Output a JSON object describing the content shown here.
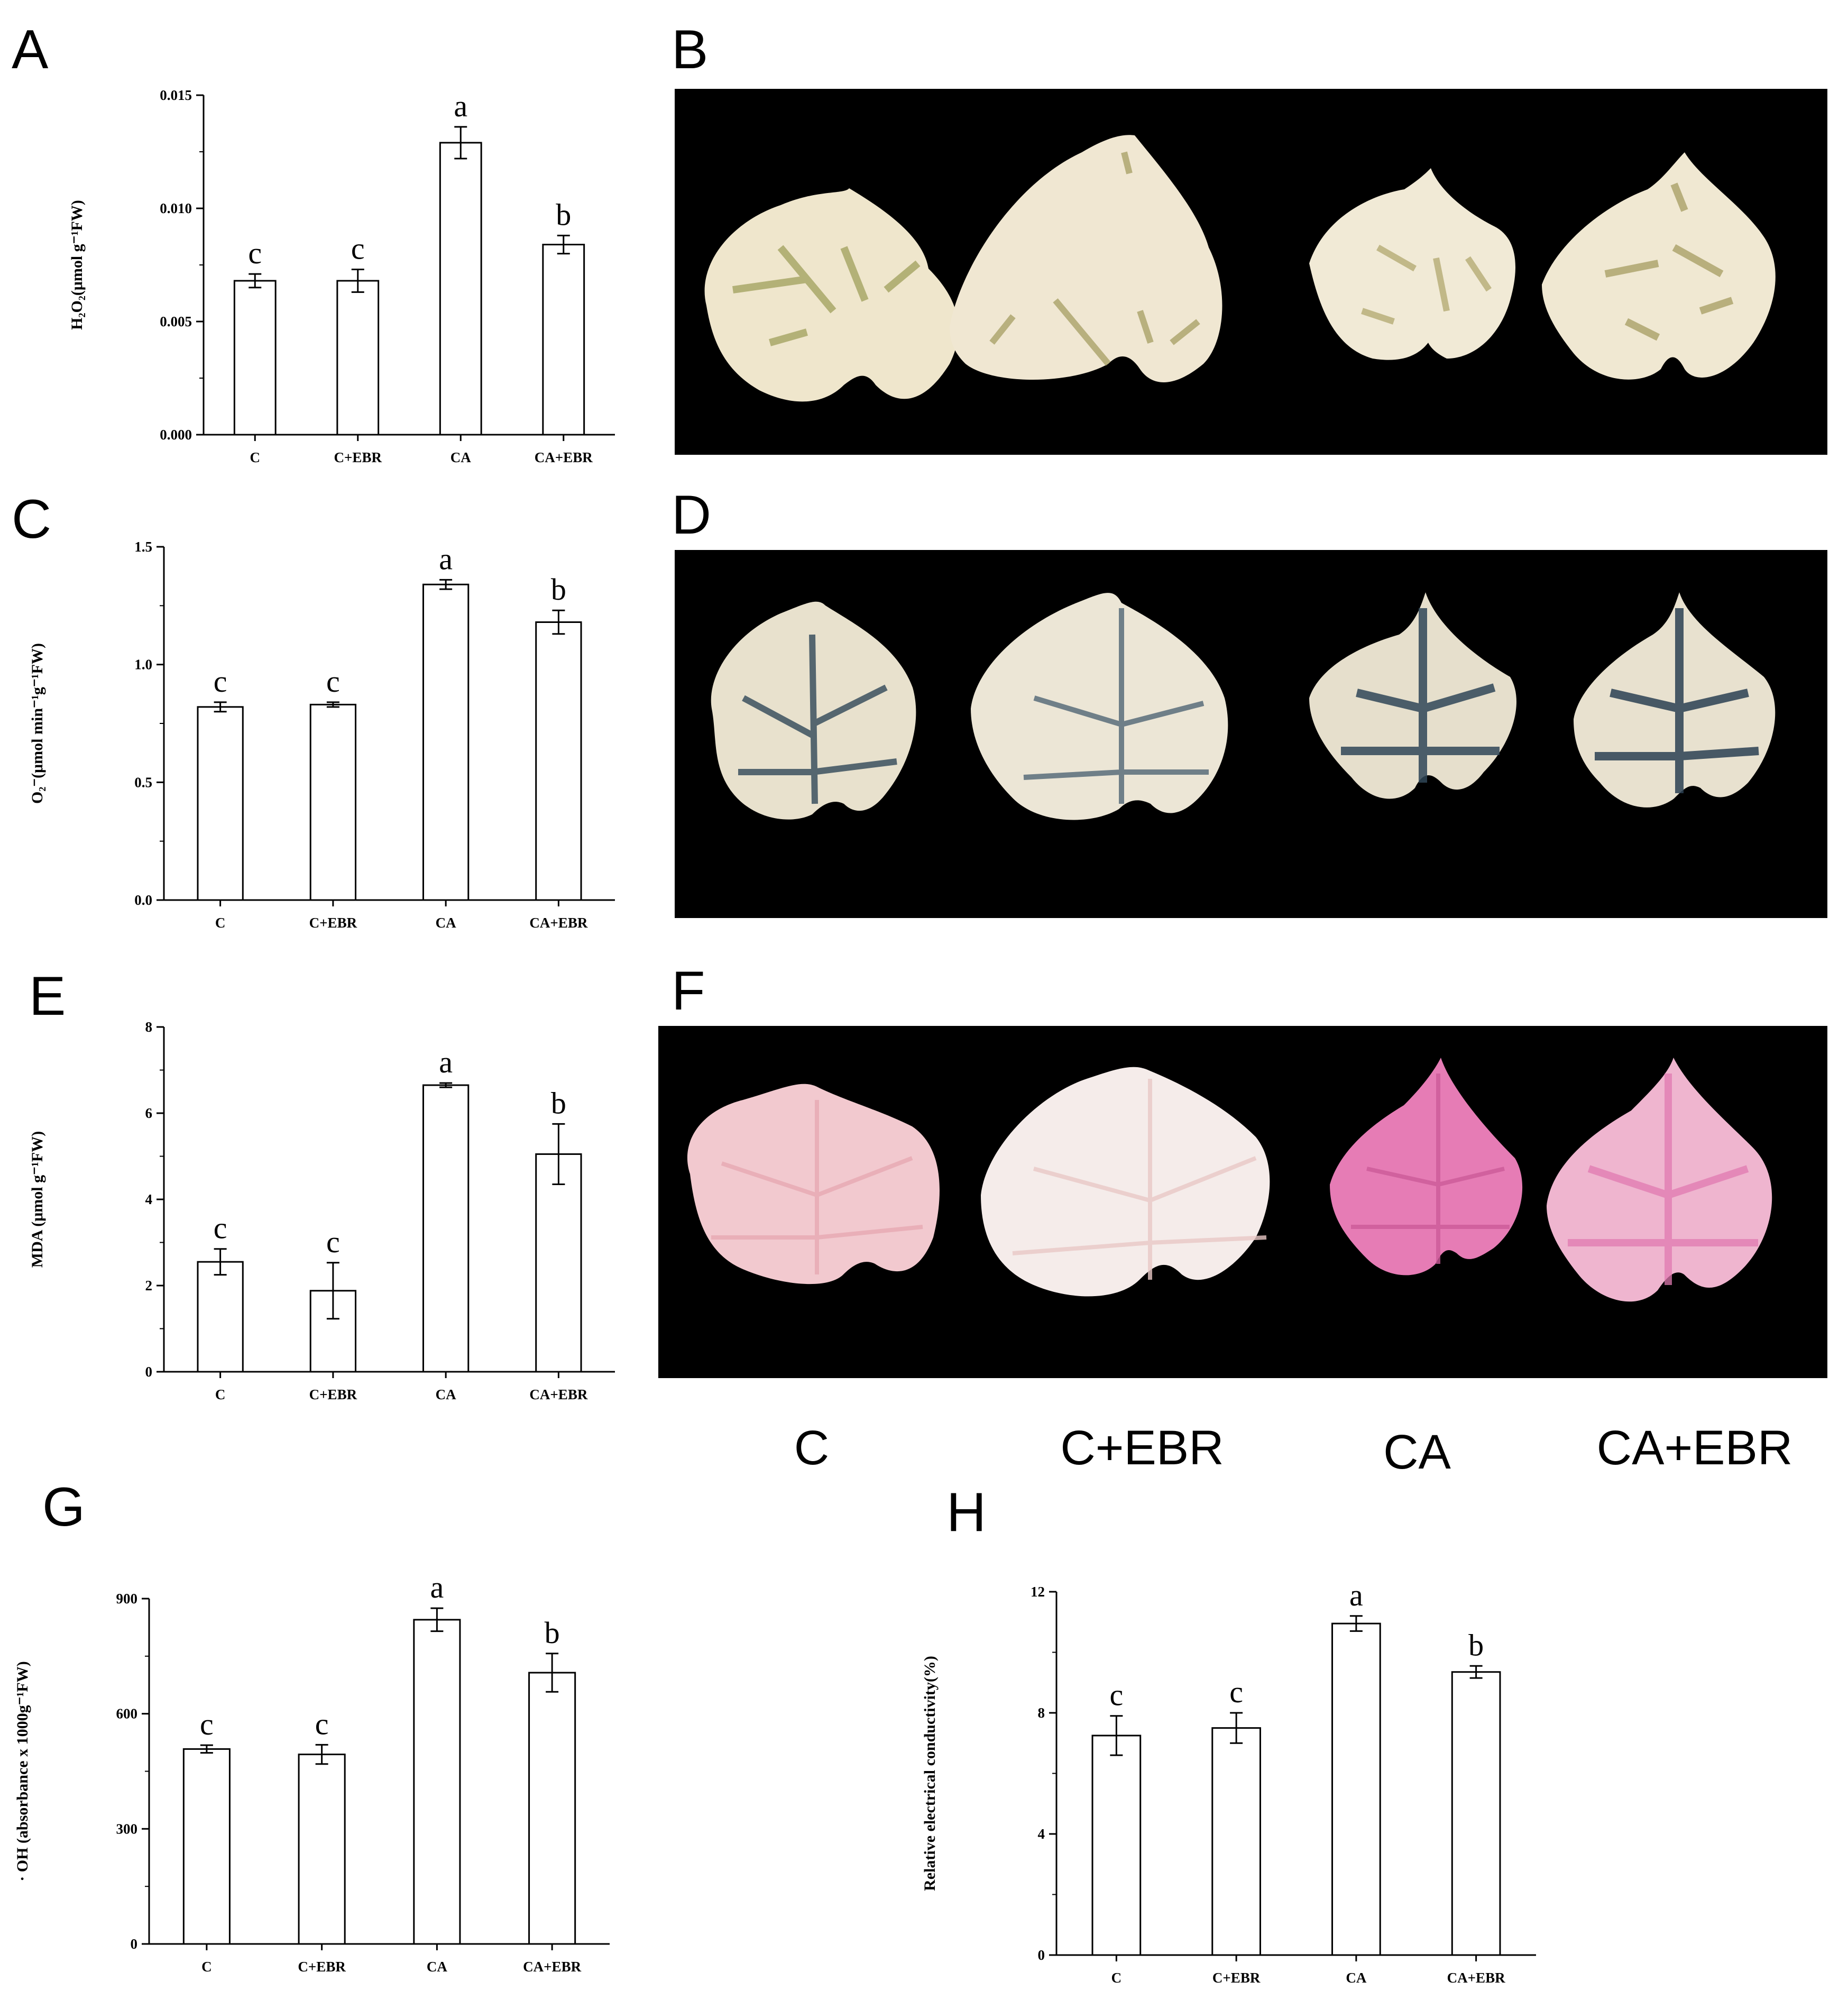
{
  "panels": {
    "A": "A",
    "B": "B",
    "C": "C",
    "D": "D",
    "E": "E",
    "F": "F",
    "G": "G",
    "H": "H"
  },
  "photo_captions": [
    "C",
    "C+EBR",
    "CA",
    "CA+EBR"
  ],
  "colors": {
    "bar_fill": "#ffffff",
    "stroke": "#000000",
    "photo_background": "#000000",
    "leaf_dab": "#efe6cc",
    "leaf_nbt": "#e8e1cd",
    "leaf_schiff": "#f2c9cf",
    "stain_brown": "#9a9a52",
    "stain_blue": "#2f4757",
    "stain_pink": "#e67cb5"
  },
  "chart_data": [
    {
      "id": "A",
      "type": "bar",
      "categories": [
        "C",
        "C+EBR",
        "CA",
        "CA+EBR"
      ],
      "values": [
        0.0068,
        0.0068,
        0.0129,
        0.0084
      ],
      "errors": [
        0.0003,
        0.0005,
        0.0007,
        0.0004
      ],
      "letters": [
        "c",
        "c",
        "a",
        "b"
      ],
      "ylabel": "H₂O₂(μmol g⁻¹FW)",
      "ylim": [
        0,
        0.015
      ],
      "yticks": [
        "0.000",
        "0.005",
        "0.010",
        "0.015"
      ]
    },
    {
      "id": "C",
      "type": "bar",
      "categories": [
        "C",
        "C+EBR",
        "CA",
        "CA+EBR"
      ],
      "values": [
        0.82,
        0.83,
        1.34,
        1.18
      ],
      "errors": [
        0.02,
        0.01,
        0.02,
        0.05
      ],
      "letters": [
        "c",
        "c",
        "a",
        "b"
      ],
      "ylabel": "O₂⁻(μmol min⁻¹g⁻¹FW)",
      "ylim": [
        0,
        1.5
      ],
      "yticks": [
        "0.0",
        "0.5",
        "1.0",
        "1.5"
      ]
    },
    {
      "id": "E",
      "type": "bar",
      "categories": [
        "C",
        "C+EBR",
        "CA",
        "CA+EBR"
      ],
      "values": [
        2.55,
        1.88,
        6.65,
        5.05
      ],
      "errors": [
        0.3,
        0.65,
        0.05,
        0.7
      ],
      "letters": [
        "c",
        "c",
        "a",
        "b"
      ],
      "ylabel": "MDA (μmol g⁻¹FW)",
      "ylim": [
        0,
        8
      ],
      "yticks": [
        "0",
        "2",
        "4",
        "6",
        "8"
      ]
    },
    {
      "id": "G",
      "type": "bar",
      "categories": [
        "C",
        "C+EBR",
        "CA",
        "CA+EBR"
      ],
      "values": [
        508,
        494,
        845,
        707
      ],
      "errors": [
        10,
        25,
        30,
        50
      ],
      "letters": [
        "c",
        "c",
        "a",
        "b"
      ],
      "ylabel": "· OH (absorbance x 1000g⁻¹FW)",
      "ylim": [
        0,
        900
      ],
      "yticks": [
        "0",
        "300",
        "600",
        "900"
      ]
    },
    {
      "id": "H",
      "type": "bar",
      "categories": [
        "C",
        "C+EBR",
        "CA",
        "CA+EBR"
      ],
      "values": [
        7.25,
        7.5,
        10.95,
        9.35
      ],
      "errors": [
        0.65,
        0.5,
        0.25,
        0.2
      ],
      "letters": [
        "c",
        "c",
        "a",
        "b"
      ],
      "ylabel": "Relative electrical conductivity(%)",
      "ylim": [
        0,
        12
      ],
      "yticks": [
        "0",
        "4",
        "8",
        "12"
      ]
    }
  ]
}
